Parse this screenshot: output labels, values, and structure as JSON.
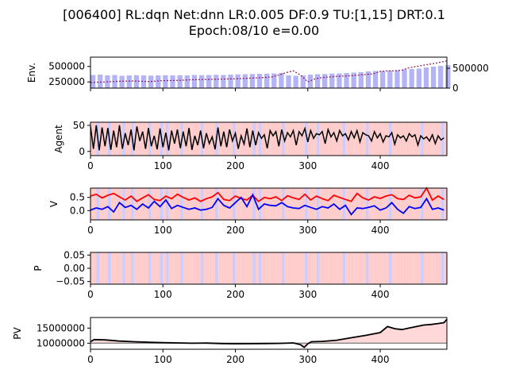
{
  "figure": {
    "title_line1": "[006400] RL:dqn Net:dnn LR:0.005 DF:0.9 TU:[1,15] DRT:0.1",
    "title_line2": "Epoch:08/10 e=0.00"
  },
  "colors": {
    "bar": "#b3b3f5",
    "buy_band": "#ffcccc",
    "sell_band": "#ccccff",
    "price_line": "#8b1a5a",
    "agent_line": "#000000",
    "v_line_1": "#ff0000",
    "v_line_2": "#0000ff",
    "pv_line": "#000000",
    "pv_fill": "#ffd9d9",
    "baseline": "#888888"
  },
  "chart_data": [
    {
      "id": "env",
      "type": "bar+line",
      "ylabel": "Env.",
      "xlim": [
        0,
        492
      ],
      "ylim_left": [
        150000,
        650000
      ],
      "yticks_left": [
        250000,
        500000
      ],
      "ylim_right": [
        0,
        780000
      ],
      "yticks_right": [
        0,
        500000
      ],
      "price_line": {
        "x": [
          0,
          20,
          40,
          60,
          80,
          100,
          120,
          140,
          160,
          180,
          200,
          220,
          240,
          250,
          260,
          270,
          280,
          290,
          300,
          310,
          320,
          330,
          340,
          350,
          360,
          370,
          380,
          390,
          400,
          410,
          420,
          430,
          440,
          450,
          460,
          470,
          480,
          492
        ],
        "y": [
          240000,
          250000,
          260000,
          265000,
          255000,
          270000,
          275000,
          285000,
          290000,
          295000,
          300000,
          310000,
          320000,
          330000,
          360000,
          400000,
          430000,
          360000,
          250000,
          300000,
          320000,
          330000,
          340000,
          345000,
          350000,
          360000,
          370000,
          380000,
          420000,
          430000,
          430000,
          440000,
          480000,
          500000,
          520000,
          540000,
          560000,
          590000
        ]
      },
      "bars": {
        "x_start": 0,
        "x_step": 10,
        "values": [
          330000,
          340000,
          320000,
          330000,
          310000,
          320000,
          325000,
          320000,
          315000,
          320000,
          325000,
          320000,
          325000,
          320000,
          330000,
          325000,
          330000,
          335000,
          330000,
          340000,
          345000,
          350000,
          355000,
          360000,
          365000,
          370000,
          380000,
          320000,
          310000,
          320000,
          340000,
          350000,
          355000,
          365000,
          370000,
          380000,
          390000,
          400000,
          420000,
          430000,
          430000,
          440000,
          450000,
          470000,
          480000,
          490000,
          520000,
          540000,
          560000,
          580000
        ]
      }
    },
    {
      "id": "agent",
      "type": "line",
      "ylabel": "Agent",
      "xlim": [
        0,
        492
      ],
      "ylim": [
        -8,
        56
      ],
      "yticks": [
        0,
        50
      ],
      "xticks": [
        0,
        100,
        200,
        300,
        400
      ],
      "description_bands": "buy/sell regions",
      "bands": {
        "x_step": 4,
        "pattern": [
          1,
          1,
          0,
          1,
          1,
          1,
          0,
          1,
          1,
          1,
          1,
          0,
          1,
          1,
          0,
          1,
          1,
          1,
          1,
          1,
          0,
          1,
          1,
          1,
          0,
          1,
          0,
          1,
          1,
          1,
          1,
          0,
          1,
          1,
          1,
          1,
          1,
          1,
          0,
          1,
          1,
          1,
          1,
          0,
          1,
          1,
          1,
          1,
          1,
          0,
          1,
          1,
          1,
          1,
          1,
          1,
          0,
          1,
          0,
          1,
          1,
          1,
          1,
          1,
          1,
          1,
          0,
          1,
          1,
          1,
          1,
          1,
          1,
          1,
          0,
          1,
          1,
          1,
          0,
          1,
          1,
          1,
          1,
          1,
          1,
          1,
          1,
          0,
          1,
          1,
          1,
          1,
          1,
          1,
          1,
          0,
          1,
          1,
          1,
          1,
          1,
          1,
          1,
          0,
          1,
          1,
          1,
          1,
          1,
          1,
          1,
          1,
          1,
          1,
          0,
          1,
          1,
          1,
          1,
          1,
          1,
          0,
          1,
          1,
          1
        ]
      },
      "line": {
        "x_step": 4,
        "y": [
          48,
          5,
          50,
          2,
          46,
          10,
          45,
          3,
          40,
          8,
          50,
          5,
          35,
          12,
          42,
          2,
          48,
          20,
          38,
          5,
          45,
          10,
          30,
          4,
          44,
          8,
          36,
          2,
          40,
          15,
          42,
          6,
          38,
          10,
          45,
          3,
          30,
          12,
          40,
          6,
          35,
          15,
          28,
          4,
          46,
          10,
          38,
          8,
          42,
          20,
          35,
          5,
          30,
          14,
          44,
          8,
          40,
          12,
          36,
          25,
          32,
          6,
          40,
          30,
          38,
          10,
          42,
          20,
          36,
          28,
          40,
          12,
          38,
          30,
          44,
          18,
          40,
          25,
          34,
          32,
          38,
          15,
          42,
          28,
          36,
          20,
          40,
          30,
          34,
          22,
          38,
          26,
          40,
          18,
          36,
          32,
          30,
          20,
          38,
          26,
          34,
          18,
          30,
          28,
          36,
          14,
          32,
          26,
          30,
          20,
          34,
          28,
          32,
          12,
          30,
          24,
          28,
          20,
          32,
          15,
          30,
          22,
          26
        ]
      }
    },
    {
      "id": "v",
      "type": "line",
      "ylabel": "V",
      "xlim": [
        0,
        492
      ],
      "ylim": [
        -0.35,
        0.85
      ],
      "yticks": [
        0.0,
        0.5
      ],
      "ytick_labels": [
        "0.0",
        "0.5"
      ],
      "xticks": [
        0,
        100,
        200,
        300,
        400
      ],
      "series": [
        {
          "color": "red",
          "x_step": 8,
          "y": [
            0.55,
            0.62,
            0.48,
            0.58,
            0.65,
            0.52,
            0.4,
            0.55,
            0.35,
            0.48,
            0.6,
            0.42,
            0.38,
            0.55,
            0.45,
            0.62,
            0.5,
            0.4,
            0.48,
            0.35,
            0.45,
            0.52,
            0.68,
            0.42,
            0.38,
            0.55,
            0.46,
            0.4,
            0.58,
            0.35,
            0.5,
            0.45,
            0.52,
            0.38,
            0.56,
            0.48,
            0.42,
            0.62,
            0.4,
            0.55,
            0.45,
            0.38,
            0.58,
            0.5,
            0.42,
            0.35,
            0.65,
            0.48,
            0.4,
            0.52,
            0.46,
            0.55,
            0.6,
            0.45,
            0.42,
            0.58,
            0.48,
            0.52,
            0.85,
            0.4,
            0.55,
            0.42
          ]
        },
        {
          "color": "blue",
          "x_step": 8,
          "y": [
            0.02,
            0.1,
            0.05,
            0.15,
            -0.05,
            0.3,
            0.12,
            0.2,
            0.05,
            0.25,
            0.1,
            0.35,
            0.15,
            0.4,
            0.08,
            0.2,
            0.12,
            0.05,
            0.1,
            0.02,
            0.05,
            0.12,
            0.45,
            0.2,
            0.1,
            0.3,
            0.5,
            0.15,
            0.6,
            0.05,
            0.25,
            0.2,
            0.18,
            0.3,
            0.15,
            0.1,
            0.08,
            0.2,
            0.12,
            0.05,
            0.15,
            0.1,
            0.25,
            0.05,
            0.2,
            -0.15,
            0.1,
            0.08,
            0.12,
            0.18,
            0.02,
            0.1,
            0.3,
            0.05,
            -0.1,
            0.15,
            0.08,
            0.12,
            0.45,
            0.05,
            0.1,
            0.02
          ]
        }
      ]
    },
    {
      "id": "p",
      "type": "bands",
      "ylabel": "P",
      "xlim": [
        0,
        492
      ],
      "ylim": [
        -0.06,
        0.06
      ],
      "yticks": [
        -0.05,
        0.0,
        0.05
      ],
      "ytick_labels": [
        "−0.05",
        "0.00",
        "0.05"
      ],
      "xticks": [
        0,
        100,
        200,
        300,
        400
      ]
    },
    {
      "id": "pv",
      "type": "line",
      "ylabel": "PV",
      "xlim": [
        0,
        492
      ],
      "ylim": [
        8000000,
        18500000
      ],
      "yticks": [
        10000000,
        15000000
      ],
      "xticks": [
        0,
        100,
        200,
        300,
        400
      ],
      "baseline": 10000000,
      "line": {
        "x": [
          0,
          5,
          20,
          40,
          60,
          80,
          100,
          120,
          140,
          160,
          180,
          200,
          220,
          240,
          260,
          280,
          290,
          295,
          300,
          305,
          320,
          340,
          360,
          380,
          400,
          410,
          420,
          430,
          440,
          450,
          460,
          470,
          480,
          488,
          492
        ],
        "y": [
          10500000,
          11200000,
          11100000,
          10700000,
          10500000,
          10300000,
          10200000,
          10100000,
          10000000,
          10050000,
          9900000,
          9800000,
          9850000,
          9900000,
          9950000,
          10100000,
          9500000,
          8600000,
          9800000,
          10500000,
          10600000,
          11000000,
          11800000,
          12600000,
          13500000,
          15500000,
          14800000,
          14500000,
          15000000,
          15500000,
          16000000,
          16200000,
          16500000,
          16800000,
          17900000
        ]
      }
    }
  ],
  "shared_xticks": [
    "0",
    "100",
    "200",
    "300",
    "400"
  ]
}
